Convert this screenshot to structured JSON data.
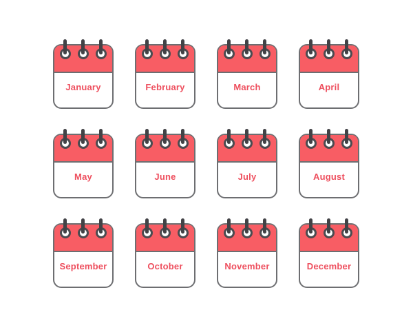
{
  "page": {
    "background": "#ffffff"
  },
  "icon_set": {
    "description": "spiral-bound calendar icons, one per month",
    "rings_per_icon": 3,
    "colors": {
      "header_red": "#f85d64",
      "label_red": "#ee4f5e",
      "outline_gray": "#6d6e71",
      "binding_ring_gray": "#4b4b50",
      "binding_stem_gray": "#424246",
      "paper_white": "#ffffff"
    },
    "months": [
      {
        "label": "January"
      },
      {
        "label": "February"
      },
      {
        "label": "March"
      },
      {
        "label": "April"
      },
      {
        "label": "May"
      },
      {
        "label": "June"
      },
      {
        "label": "July"
      },
      {
        "label": "August"
      },
      {
        "label": "September"
      },
      {
        "label": "October"
      },
      {
        "label": "November"
      },
      {
        "label": "December"
      }
    ]
  }
}
